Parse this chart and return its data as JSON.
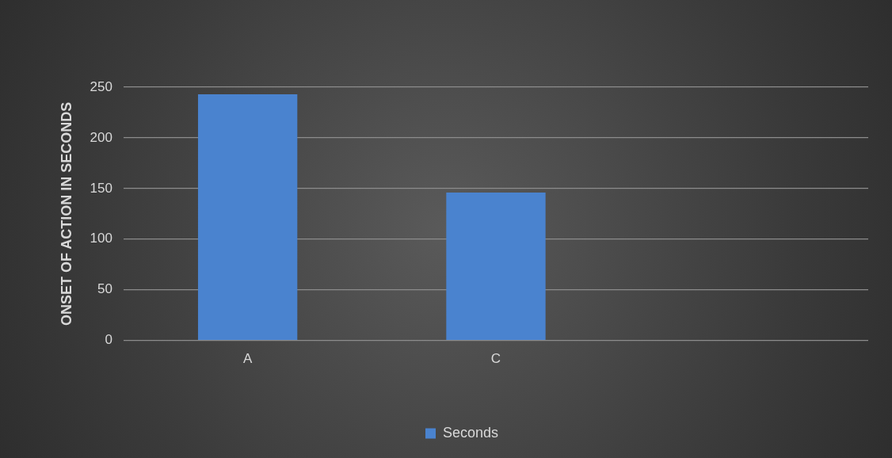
{
  "chart_data": {
    "type": "bar",
    "ylabel": "ONSET OF ACTION IN SECONDS",
    "categories": [
      "A",
      "C",
      null
    ],
    "series": [
      {
        "name": "Seconds",
        "color": "#4a83cf",
        "values": [
          243,
          146,
          null
        ]
      }
    ],
    "ylim": [
      0,
      250
    ],
    "yticks": [
      0,
      50,
      100,
      150,
      200,
      250
    ],
    "grid": "y",
    "legend": "bottom"
  }
}
